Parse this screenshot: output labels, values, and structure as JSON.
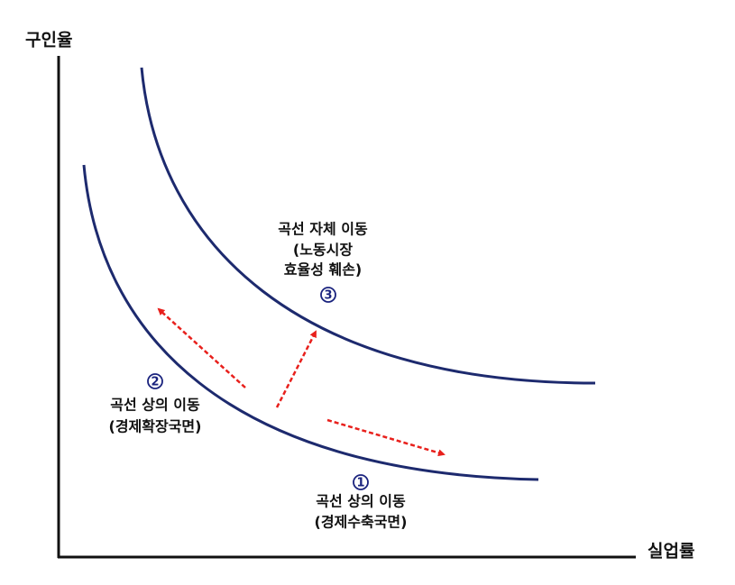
{
  "axes": {
    "y_label": "구인율",
    "x_label": "실업률"
  },
  "annotations": [
    {
      "number": "3",
      "lines": [
        "곡선 자체 이동",
        "(노동시장",
        "효율성 훼손)"
      ]
    },
    {
      "number": "2",
      "lines": [
        "곡선 상의 이동",
        "(경제확장국면)"
      ]
    },
    {
      "number": "1",
      "lines": [
        "곡선 상의 이동",
        "(경제수축국면)"
      ]
    }
  ]
}
